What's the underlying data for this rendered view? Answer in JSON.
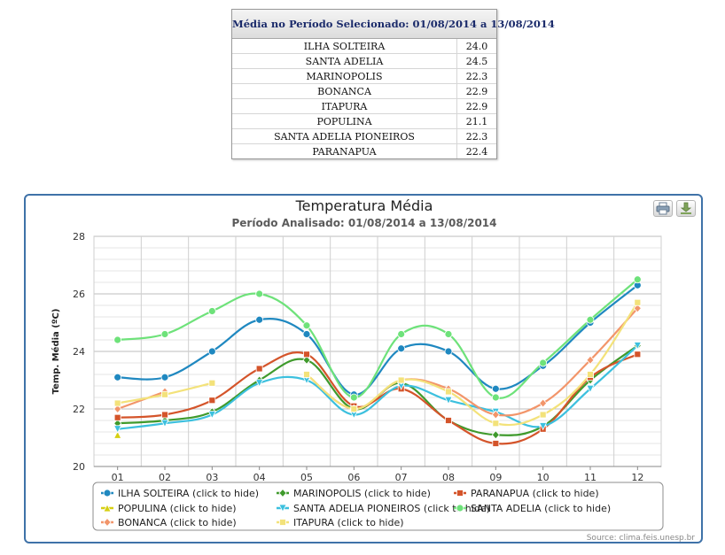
{
  "summary": {
    "title": "Média no Período Selecionado: 01/08/2014 a 13/08/2014",
    "rows": [
      {
        "station": "ILHA SOLTEIRA",
        "value": "24.0"
      },
      {
        "station": "SANTA ADELIA",
        "value": "24.5"
      },
      {
        "station": "MARINOPOLIS",
        "value": "22.3"
      },
      {
        "station": "BONANCA",
        "value": "22.9"
      },
      {
        "station": "ITAPURA",
        "value": "22.9"
      },
      {
        "station": "POPULINA",
        "value": "21.1"
      },
      {
        "station": "SANTA ADELIA PIONEIROS",
        "value": "22.3"
      },
      {
        "station": "PARANAPUA",
        "value": "22.4"
      }
    ]
  },
  "toolbar": {
    "print_icon": "printer-icon",
    "export_icon": "download-icon"
  },
  "chart_data": {
    "type": "line",
    "title": "Temperatura Média",
    "subtitle": "Período Analisado: 01/08/2014 a 13/08/2014",
    "xlabel": "",
    "ylabel": "Temp. Média (ºC)",
    "categories": [
      "01",
      "02",
      "03",
      "04",
      "05",
      "06",
      "07",
      "08",
      "09",
      "10",
      "11",
      "12"
    ],
    "ylim": [
      20,
      28
    ],
    "yticks": [
      "20",
      "22",
      "24",
      "26",
      "28"
    ],
    "grid": true,
    "smooth": true,
    "legend_position": "bottom",
    "series": [
      {
        "name": "ILHA SOLTEIRA",
        "legend": "ILHA SOLTEIRA (click to hide)",
        "color": "#1f88c0",
        "marker": "circle",
        "values": [
          23.1,
          23.1,
          24.0,
          25.1,
          24.6,
          22.5,
          24.1,
          24.0,
          22.7,
          23.5,
          25.0,
          26.3
        ]
      },
      {
        "name": "MARINOPOLIS",
        "legend": "MARINOPOLIS (click to hide)",
        "color": "#3f9a2c",
        "marker": "diamond",
        "values": [
          21.5,
          21.6,
          21.9,
          23.0,
          23.7,
          22.0,
          22.9,
          21.6,
          21.1,
          21.4,
          23.0,
          24.2
        ]
      },
      {
        "name": "PARANAPUA",
        "legend": "PARANAPUA (click to hide)",
        "color": "#d4542a",
        "marker": "square",
        "values": [
          21.7,
          21.8,
          22.3,
          23.4,
          23.9,
          22.1,
          22.7,
          21.6,
          20.8,
          21.3,
          23.1,
          23.9
        ]
      },
      {
        "name": "POPULINA",
        "legend": "POPULINA (click to hide)",
        "color": "#d6cf12",
        "marker": "triangle",
        "values": [
          21.1,
          null,
          null,
          null,
          null,
          null,
          null,
          null,
          null,
          null,
          null,
          null
        ]
      },
      {
        "name": "SANTA ADELIA PIONEIROS",
        "legend": "SANTA ADELIA PIONEIROS (click to hide)",
        "color": "#3cc0de",
        "marker": "triangle-down",
        "values": [
          21.3,
          21.5,
          21.8,
          22.9,
          23.0,
          21.8,
          22.8,
          22.3,
          21.9,
          21.4,
          22.7,
          24.2
        ]
      },
      {
        "name": "SANTA ADELIA",
        "legend": "SANTA ADELIA (click to hide)",
        "color": "#6ee27a",
        "marker": "circle",
        "values": [
          24.4,
          24.6,
          25.4,
          26.0,
          24.9,
          22.4,
          24.6,
          24.6,
          22.4,
          23.6,
          25.1,
          26.5
        ]
      },
      {
        "name": "BONANCA",
        "legend": "BONANCA (click to hide)",
        "color": "#f2956a",
        "marker": "diamond",
        "values": [
          22.0,
          22.6,
          null,
          null,
          23.2,
          22.0,
          23.0,
          22.7,
          21.8,
          22.2,
          23.7,
          25.5
        ]
      },
      {
        "name": "ITAPURA",
        "legend": "ITAPURA (click to hide)",
        "color": "#f3e27a",
        "marker": "square",
        "values": [
          22.2,
          22.5,
          22.9,
          null,
          23.2,
          22.0,
          23.0,
          22.6,
          21.5,
          21.8,
          23.2,
          25.7
        ]
      }
    ],
    "source": "Source: clima.feis.unesp.br"
  }
}
